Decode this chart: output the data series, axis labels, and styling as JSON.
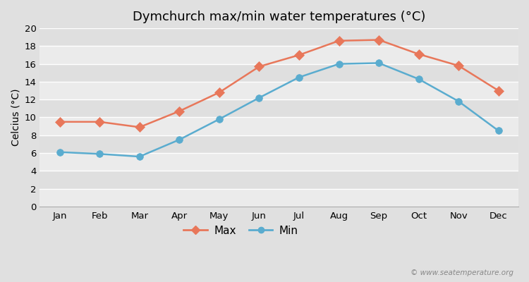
{
  "title": "Dymchurch max/min water temperatures (°C)",
  "ylabel": "Celcius (°C)",
  "months": [
    "Jan",
    "Feb",
    "Mar",
    "Apr",
    "May",
    "Jun",
    "Jul",
    "Aug",
    "Sep",
    "Oct",
    "Nov",
    "Dec"
  ],
  "max_temps": [
    9.5,
    9.5,
    8.9,
    10.7,
    12.8,
    15.7,
    17.0,
    18.6,
    18.7,
    17.1,
    15.8,
    13.0
  ],
  "min_temps": [
    6.1,
    5.9,
    5.6,
    7.5,
    9.8,
    12.2,
    14.5,
    16.0,
    16.1,
    14.3,
    11.8,
    8.5
  ],
  "max_color": "#e8775a",
  "min_color": "#5aaccf",
  "background_color": "#e0e0e0",
  "plot_bg_color": "#efefef",
  "band_color_light": "#ebebeb",
  "band_color_dark": "#dfdfdf",
  "ylim": [
    0,
    20
  ],
  "yticks": [
    0,
    2,
    4,
    6,
    8,
    10,
    12,
    14,
    16,
    18,
    20
  ],
  "legend_labels": [
    "Max",
    "Min"
  ],
  "watermark": "© www.seatemperature.org",
  "title_fontsize": 13,
  "axis_label_fontsize": 10,
  "tick_fontsize": 9.5,
  "legend_fontsize": 11
}
